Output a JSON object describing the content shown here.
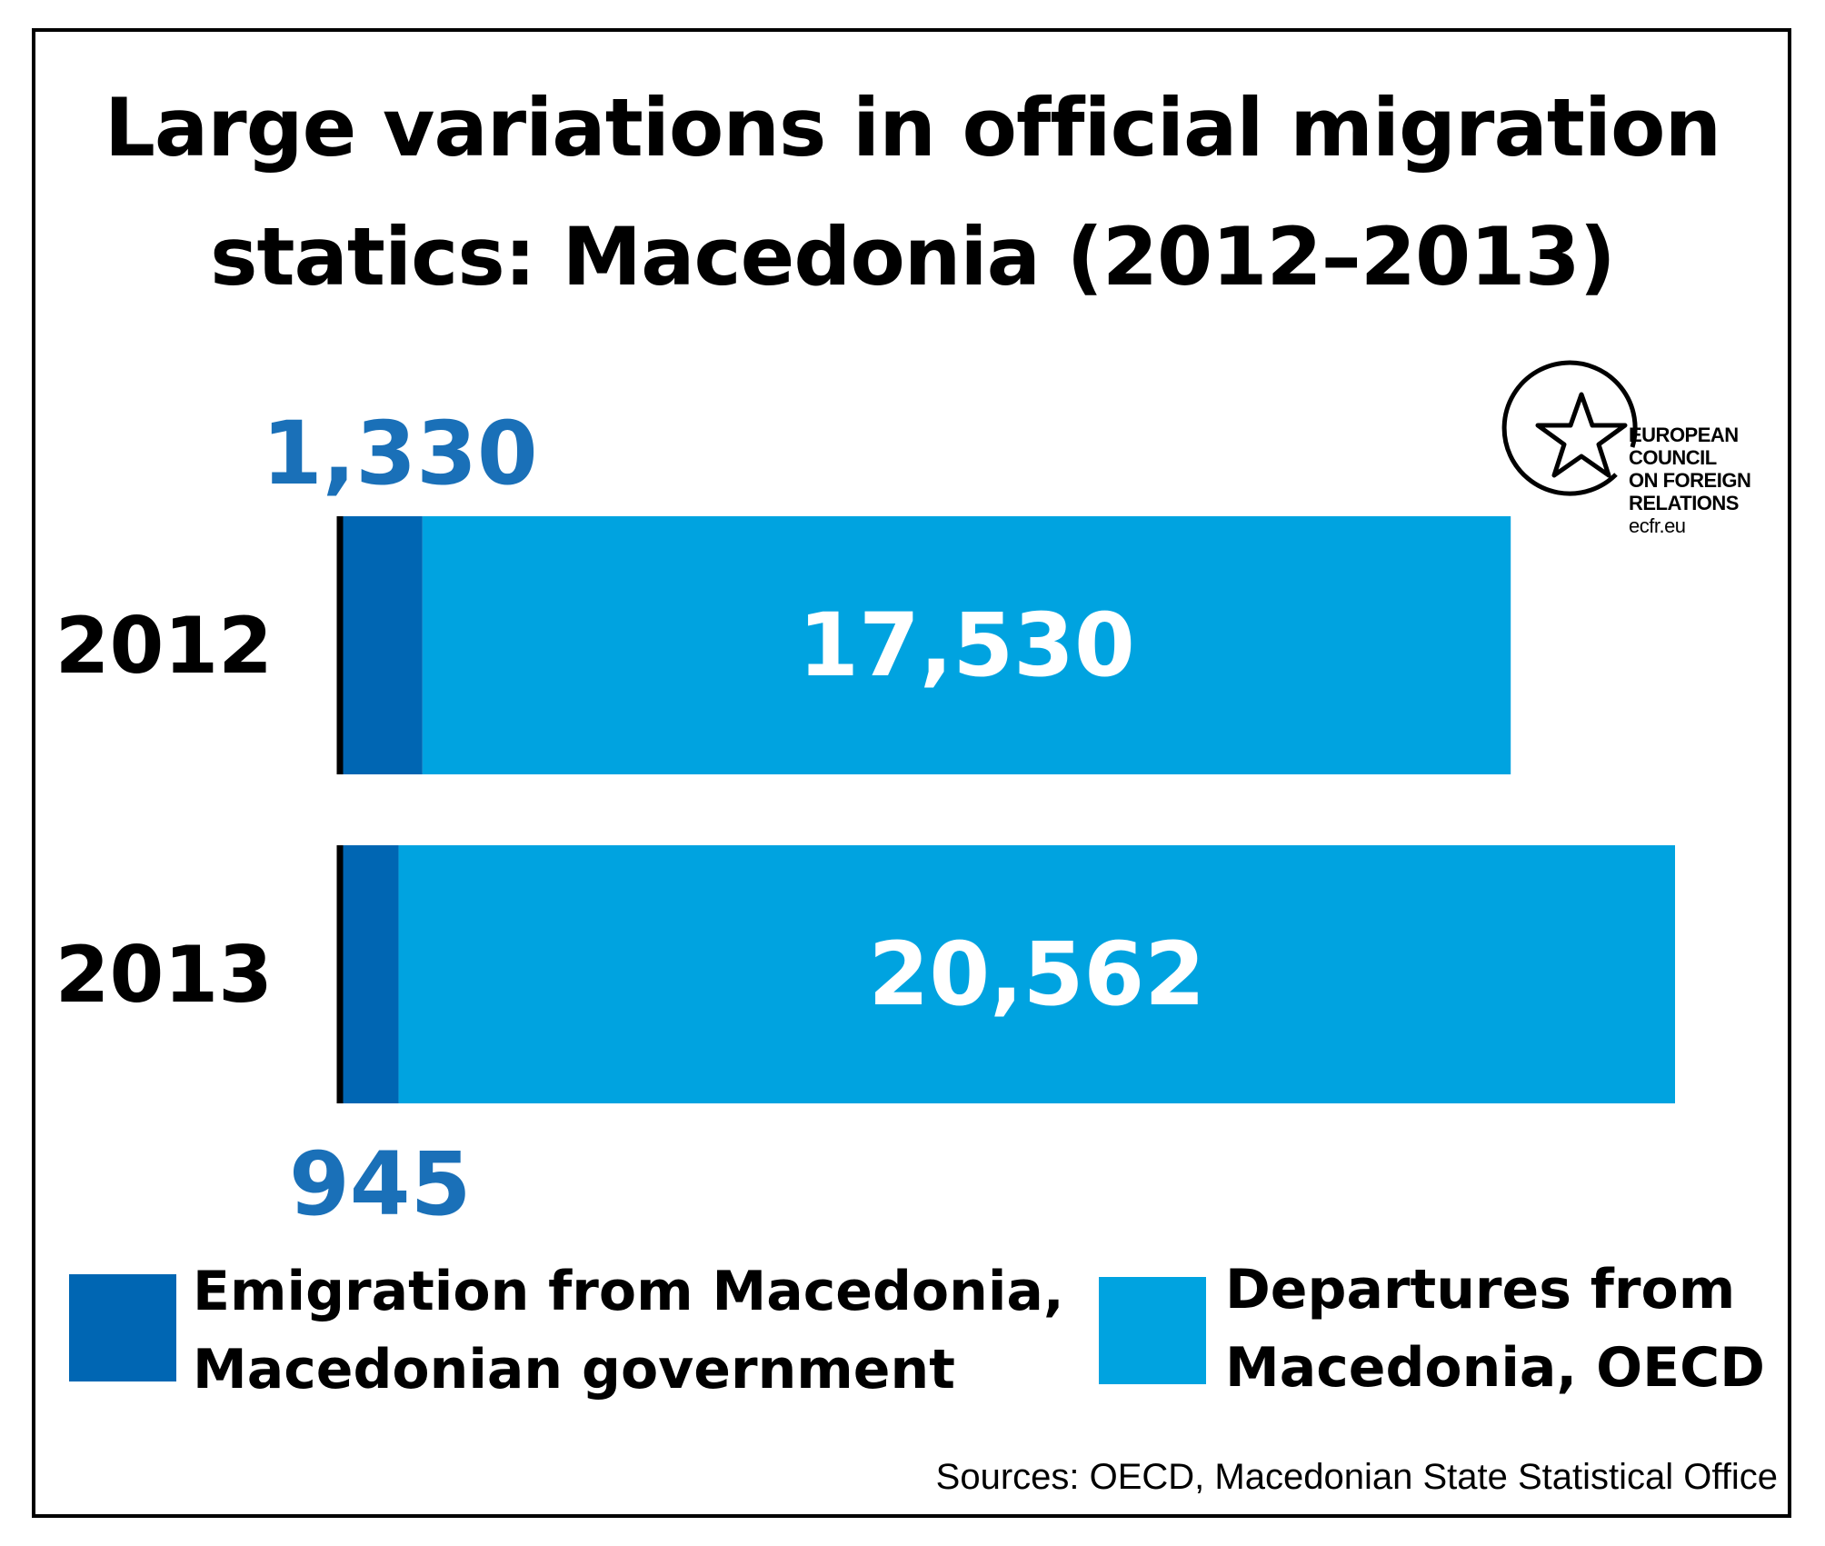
{
  "chart_data": {
    "type": "bar",
    "orientation": "horizontal",
    "stacked": true,
    "title": "Large variations in official migration statics: Macedonia (2012–2013)",
    "title_lines": [
      "Large variations in official migration",
      "statics: Macedonia (2012–2013)"
    ],
    "categories": [
      "2012",
      "2013"
    ],
    "series": [
      {
        "name": "Emigration from Macedonia, Macedonian government",
        "values": [
          1330,
          945
        ],
        "labels": [
          "1,330",
          "945"
        ],
        "color": "#0066b3"
      },
      {
        "name": "Departures from Macedonia, OECD",
        "values": [
          17530,
          20562
        ],
        "labels": [
          "17,530",
          "20,562"
        ],
        "color": "#00a3e0"
      }
    ],
    "xlim": [
      0,
      21507
    ],
    "grid": false,
    "legend_placement": "bottom"
  },
  "legend": [
    {
      "label": "Emigration from Macedonia,\nMacedonian government",
      "color": "#0066b3"
    },
    {
      "label": "Departures from\nMacedonia, OECD",
      "color": "#00a3e0"
    }
  ],
  "logo": {
    "lines": [
      "EUROPEAN",
      "COUNCIL",
      "ON FOREIGN",
      "RELATIONS"
    ],
    "url": "ecfr.eu",
    "icon": "star-circle-icon"
  },
  "source": "Sources: OECD, Macedonian State Statistical Office",
  "colors": {
    "dark_blue": "#0066b3",
    "light_blue": "#00a3e0",
    "label_blue": "#1a70b8",
    "text": "#000000",
    "bar_label": "#ffffff"
  }
}
